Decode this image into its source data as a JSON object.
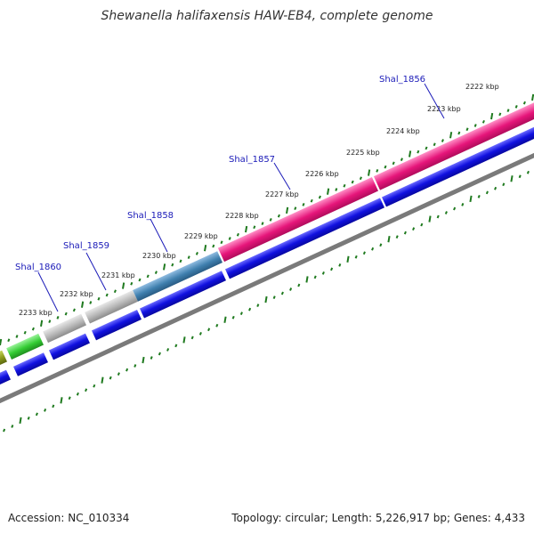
{
  "title": "Shewanella halifaxensis HAW-EB4, complete genome",
  "footer": {
    "accession": "Accession: NC_010334",
    "topology": "Topology: circular; Length: 5,226,917 bp; Genes: 4,433"
  },
  "scale_labels": [
    "2222 kbp",
    "2223 kbp",
    "2224 kbp",
    "2225 kbp",
    "2226 kbp",
    "2227 kbp",
    "2228 kbp",
    "2229 kbp",
    "2230 kbp",
    "2231 kbp",
    "2232 kbp",
    "2233 kbp"
  ],
  "gene_labels": [
    "Shal_1856",
    "Shal_1857",
    "Shal_1858",
    "Shal_1859",
    "Shal_1860"
  ],
  "colors": {
    "tick": "#1f7a1f",
    "gene_label": "#1a1ab8",
    "blue_gene": "#1010e0",
    "backbone": "#808080",
    "pink_gene": "#e6157a",
    "steel_gene": "#3f7fae",
    "grey_gene": "#b8b8b8",
    "green_gene": "#33cc33",
    "olive_gene": "#8a9a1a"
  }
}
